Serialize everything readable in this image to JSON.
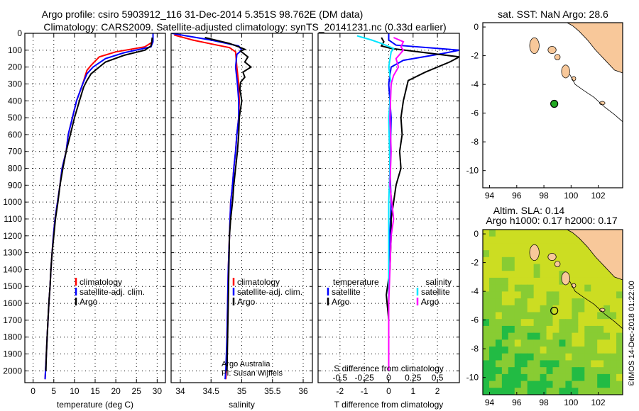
{
  "header": {
    "line1": "Argo profile: csiro 5903912_116 31-Dec-2014 5.351S 98.762E (DM data)",
    "line2": "Climatology: CARS2009. Satellite-adjusted climatology: synTS_20141231.nc (0.33d earlier)"
  },
  "chart_data": [
    {
      "type": "line",
      "name": "temperature-profile",
      "xlabel": "temperature (deg C)",
      "xlim": [
        -2,
        32
      ],
      "xticks": [
        0,
        5,
        10,
        15,
        20,
        25,
        30
      ],
      "ylim": [
        2070,
        0
      ],
      "yticks": [
        0,
        100,
        200,
        300,
        400,
        500,
        600,
        700,
        800,
        900,
        1000,
        1100,
        1200,
        1300,
        1400,
        1500,
        1600,
        1700,
        1800,
        1900,
        2000
      ],
      "legend": [
        "climatology",
        "satellite-adj. clim.",
        "Argo"
      ],
      "series": [
        {
          "name": "climatology",
          "color": "#ff0000",
          "points": [
            [
              29,
              0
            ],
            [
              29,
              50
            ],
            [
              27,
              80
            ],
            [
              20,
              110
            ],
            [
              16,
              140
            ],
            [
              14,
              190
            ],
            [
              13,
              220
            ],
            [
              12,
              300
            ],
            [
              10.5,
              400
            ],
            [
              9.5,
              500
            ],
            [
              8.5,
              600
            ],
            [
              8,
              700
            ],
            [
              7,
              800
            ],
            [
              6.5,
              900
            ],
            [
              5.9,
              1000
            ],
            [
              5.3,
              1100
            ],
            [
              4.9,
              1200
            ],
            [
              4.6,
              1300
            ],
            [
              4.3,
              1400
            ],
            [
              4.1,
              1500
            ],
            [
              3.8,
              1600
            ],
            [
              3.6,
              1700
            ],
            [
              3.4,
              1800
            ],
            [
              3.2,
              1900
            ],
            [
              3,
              2000
            ],
            [
              2.9,
              2050
            ]
          ]
        },
        {
          "name": "satellite-adj. clim.",
          "color": "#0000ff",
          "points": [
            [
              29,
              0
            ],
            [
              29,
              50
            ],
            [
              28.5,
              80
            ],
            [
              22,
              115
            ],
            [
              17.5,
              150
            ],
            [
              14.5,
              200
            ],
            [
              13,
              240
            ],
            [
              12,
              300
            ],
            [
              10.5,
              400
            ],
            [
              9.5,
              500
            ],
            [
              8.5,
              600
            ],
            [
              8,
              700
            ],
            [
              7,
              800
            ],
            [
              6.5,
              900
            ],
            [
              5.9,
              1000
            ],
            [
              5.3,
              1100
            ],
            [
              4.9,
              1200
            ],
            [
              4.6,
              1300
            ],
            [
              4.3,
              1400
            ],
            [
              4.1,
              1500
            ],
            [
              3.8,
              1600
            ],
            [
              3.6,
              1700
            ],
            [
              3.4,
              1800
            ],
            [
              3.2,
              1900
            ],
            [
              3,
              2000
            ],
            [
              2.9,
              2050
            ]
          ]
        },
        {
          "name": "Argo",
          "color": "#000000",
          "points": [
            [
              28.8,
              25
            ],
            [
              28.7,
              50
            ],
            [
              28.5,
              75
            ],
            [
              27,
              100
            ],
            [
              22,
              130
            ],
            [
              17.5,
              170
            ],
            [
              16,
              200
            ],
            [
              14,
              240
            ],
            [
              13,
              280
            ],
            [
              12.2,
              320
            ],
            [
              11.2,
              400
            ],
            [
              10,
              500
            ],
            [
              9,
              600
            ],
            [
              8,
              700
            ],
            [
              7.2,
              800
            ],
            [
              6.5,
              900
            ],
            [
              6,
              1000
            ],
            [
              5.4,
              1100
            ],
            [
              5,
              1200
            ],
            [
              4.6,
              1300
            ],
            [
              4.3,
              1400
            ],
            [
              4.1,
              1500
            ],
            [
              3.8,
              1600
            ],
            [
              3.6,
              1700
            ],
            [
              3.4,
              1800
            ],
            [
              3.2,
              1900
            ],
            [
              3.1,
              2000
            ]
          ]
        }
      ]
    },
    {
      "type": "line",
      "name": "salinity-profile",
      "xlabel": "salinity",
      "xlim": [
        33.85,
        36.15
      ],
      "xticks": [
        34,
        34.5,
        35,
        35.5,
        36
      ],
      "xticklabels": [
        "34",
        "34.5",
        "35",
        "35.5",
        "36"
      ],
      "ylim": [
        2070,
        0
      ],
      "legend": [
        "climatology",
        "satellite-adj. clim.",
        "Argo"
      ],
      "annotation": [
        "Argo Australia",
        "PI: Susan Wijffels"
      ],
      "series": [
        {
          "name": "climatology",
          "color": "#ff0000",
          "points": [
            [
              33.9,
              10
            ],
            [
              34.2,
              40
            ],
            [
              34.6,
              70
            ],
            [
              34.8,
              85
            ],
            [
              34.9,
              110
            ],
            [
              34.92,
              200
            ],
            [
              34.95,
              300
            ],
            [
              34.96,
              400
            ],
            [
              34.95,
              500
            ],
            [
              34.92,
              600
            ],
            [
              34.9,
              700
            ],
            [
              34.87,
              800
            ],
            [
              34.85,
              900
            ],
            [
              34.82,
              1000
            ],
            [
              34.8,
              1200
            ],
            [
              34.78,
              1400
            ],
            [
              34.77,
              1600
            ],
            [
              34.76,
              1800
            ],
            [
              34.75,
              2000
            ],
            [
              34.74,
              2050
            ]
          ]
        },
        {
          "name": "satellite-adj. clim.",
          "color": "#0000ff",
          "points": [
            [
              33.86,
              0
            ],
            [
              34.1,
              15
            ],
            [
              34.5,
              40
            ],
            [
              34.95,
              75
            ],
            [
              35.0,
              100
            ],
            [
              34.92,
              125
            ],
            [
              34.9,
              200
            ],
            [
              34.93,
              300
            ],
            [
              34.95,
              400
            ],
            [
              34.95,
              500
            ],
            [
              34.92,
              600
            ],
            [
              34.9,
              700
            ],
            [
              34.87,
              800
            ],
            [
              34.85,
              900
            ],
            [
              34.82,
              1000
            ],
            [
              34.8,
              1200
            ],
            [
              34.78,
              1400
            ],
            [
              34.77,
              1600
            ],
            [
              34.76,
              1800
            ],
            [
              34.74,
              2000
            ],
            [
              34.73,
              2050
            ]
          ]
        },
        {
          "name": "Argo",
          "color": "#000000",
          "points": [
            [
              34.4,
              25
            ],
            [
              34.8,
              60
            ],
            [
              34.95,
              80
            ],
            [
              35.05,
              95
            ],
            [
              34.98,
              105
            ],
            [
              35.1,
              140
            ],
            [
              35.05,
              170
            ],
            [
              35.15,
              200
            ],
            [
              35.02,
              230
            ],
            [
              35.05,
              260
            ],
            [
              34.98,
              290
            ],
            [
              34.97,
              330
            ],
            [
              35.0,
              400
            ],
            [
              34.96,
              500
            ],
            [
              34.95,
              600
            ],
            [
              34.93,
              700
            ],
            [
              34.9,
              800
            ],
            [
              34.87,
              900
            ],
            [
              34.85,
              1000
            ],
            [
              34.82,
              1100
            ],
            [
              34.8,
              1200
            ],
            [
              34.79,
              1400
            ],
            [
              34.78,
              1600
            ],
            [
              34.77,
              1800
            ],
            [
              34.76,
              2000
            ]
          ]
        }
      ]
    },
    {
      "type": "line",
      "name": "difference-profile",
      "xlabel": "T difference from climatology",
      "xlim": [
        -2.9,
        2.9
      ],
      "xticks": [
        -2,
        -1,
        0,
        1,
        2
      ],
      "xticklabels": [
        "-2",
        "-1",
        "0",
        "1",
        "2"
      ],
      "secondary_xlabel": "S difference from climatology",
      "secondary_xticks": [
        -0.5,
        -0.25,
        0,
        0.25,
        0.5
      ],
      "secondary_xticklabels": [
        "-0.5",
        "-0.25",
        "0",
        "0.25",
        "0.5"
      ],
      "ylim": [
        2070,
        0
      ],
      "legend_left": {
        "title": "temperature",
        "items": [
          "satellite",
          "Argo"
        ]
      },
      "legend_right": {
        "title": "salinity",
        "items": [
          "satellite",
          "Argo"
        ]
      },
      "series": [
        {
          "name": "temperature satellite",
          "color": "#0000ff",
          "points": [
            [
              0,
              0
            ],
            [
              0,
              40
            ],
            [
              0.3,
              70
            ],
            [
              2.9,
              100
            ],
            [
              2.2,
              120
            ],
            [
              0.6,
              160
            ],
            [
              0.1,
              200
            ],
            [
              0,
              300
            ],
            [
              0.1,
              500
            ],
            [
              0.05,
              800
            ],
            [
              0.1,
              1000
            ],
            [
              0.05,
              1200
            ],
            [
              0,
              1400
            ],
            [
              0,
              2000
            ]
          ]
        },
        {
          "name": "temperature Argo",
          "color": "#000000",
          "points": [
            [
              -0.3,
              25
            ],
            [
              -0.2,
              50
            ],
            [
              -0.3,
              75
            ],
            [
              0.1,
              90
            ],
            [
              2.9,
              140
            ],
            [
              2.5,
              170
            ],
            [
              1.5,
              230
            ],
            [
              0.8,
              280
            ],
            [
              0.7,
              340
            ],
            [
              0.6,
              400
            ],
            [
              0.5,
              500
            ],
            [
              0.55,
              600
            ],
            [
              0.45,
              700
            ],
            [
              0.5,
              800
            ],
            [
              0.3,
              900
            ],
            [
              0.2,
              1000
            ],
            [
              0.1,
              1100
            ],
            [
              0.1,
              1200
            ],
            [
              0.05,
              1400
            ],
            [
              -0.1,
              1550
            ],
            [
              0,
              1700
            ],
            [
              0,
              2000
            ]
          ]
        },
        {
          "name": "salinity satellite",
          "color": "#00e5ff",
          "points": [
            [
              -1.3,
              15
            ],
            [
              -0.7,
              40
            ],
            [
              -0.3,
              60
            ],
            [
              0.2,
              90
            ],
            [
              0.1,
              110
            ],
            [
              0,
              200
            ],
            [
              0.1,
              300
            ],
            [
              0,
              500
            ],
            [
              0.05,
              800
            ],
            [
              0,
              1000
            ],
            [
              0,
              1400
            ],
            [
              0,
              2000
            ]
          ]
        },
        {
          "name": "salinity Argo",
          "color": "#ff00ff",
          "points": [
            [
              0.2,
              25
            ],
            [
              0.6,
              50
            ],
            [
              0.5,
              80
            ],
            [
              0.6,
              100
            ],
            [
              0.3,
              150
            ],
            [
              0.4,
              200
            ],
            [
              0.2,
              250
            ],
            [
              0.1,
              300
            ],
            [
              0.05,
              500
            ],
            [
              0.1,
              700
            ],
            [
              0.05,
              900
            ],
            [
              0.2,
              1100
            ],
            [
              0.1,
              1200
            ],
            [
              0.05,
              1400
            ],
            [
              0,
              1600
            ],
            [
              0,
              2000
            ]
          ]
        }
      ]
    },
    {
      "type": "map",
      "name": "sst-map",
      "title": "sat. SST: NaN Argo: 28.6",
      "xlim": [
        93.5,
        103.8
      ],
      "ylim": [
        -11.2,
        0.3
      ],
      "xticks": [
        94,
        96,
        98,
        100,
        102
      ],
      "yticks": [
        0,
        -2,
        -4,
        -6,
        -8,
        -10
      ],
      "float_position": [
        98.762,
        -5.351
      ],
      "float_color": "#22aa22"
    },
    {
      "type": "map",
      "name": "sla-map",
      "title": "Altim. SLA: 0.14",
      "subtitle": "Argo h1000: 0.17 h2000: 0.17",
      "xlim": [
        93.5,
        103.8
      ],
      "ylim": [
        -11.2,
        0.3
      ],
      "xticks": [
        94,
        96,
        98,
        100,
        102
      ],
      "yticks": [
        0,
        -2,
        -4,
        -6,
        -8,
        -10
      ],
      "float_position": [
        98.762,
        -5.351
      ],
      "colors": {
        "land": "#f8c89a",
        "sea_low": "#22bb44",
        "sea_mid": "#88cc33",
        "sea_high": "#ccdd22"
      }
    }
  ],
  "footer": {
    "imos_stamp": "©IMOS 14-Dec-2018 01:22:00"
  }
}
